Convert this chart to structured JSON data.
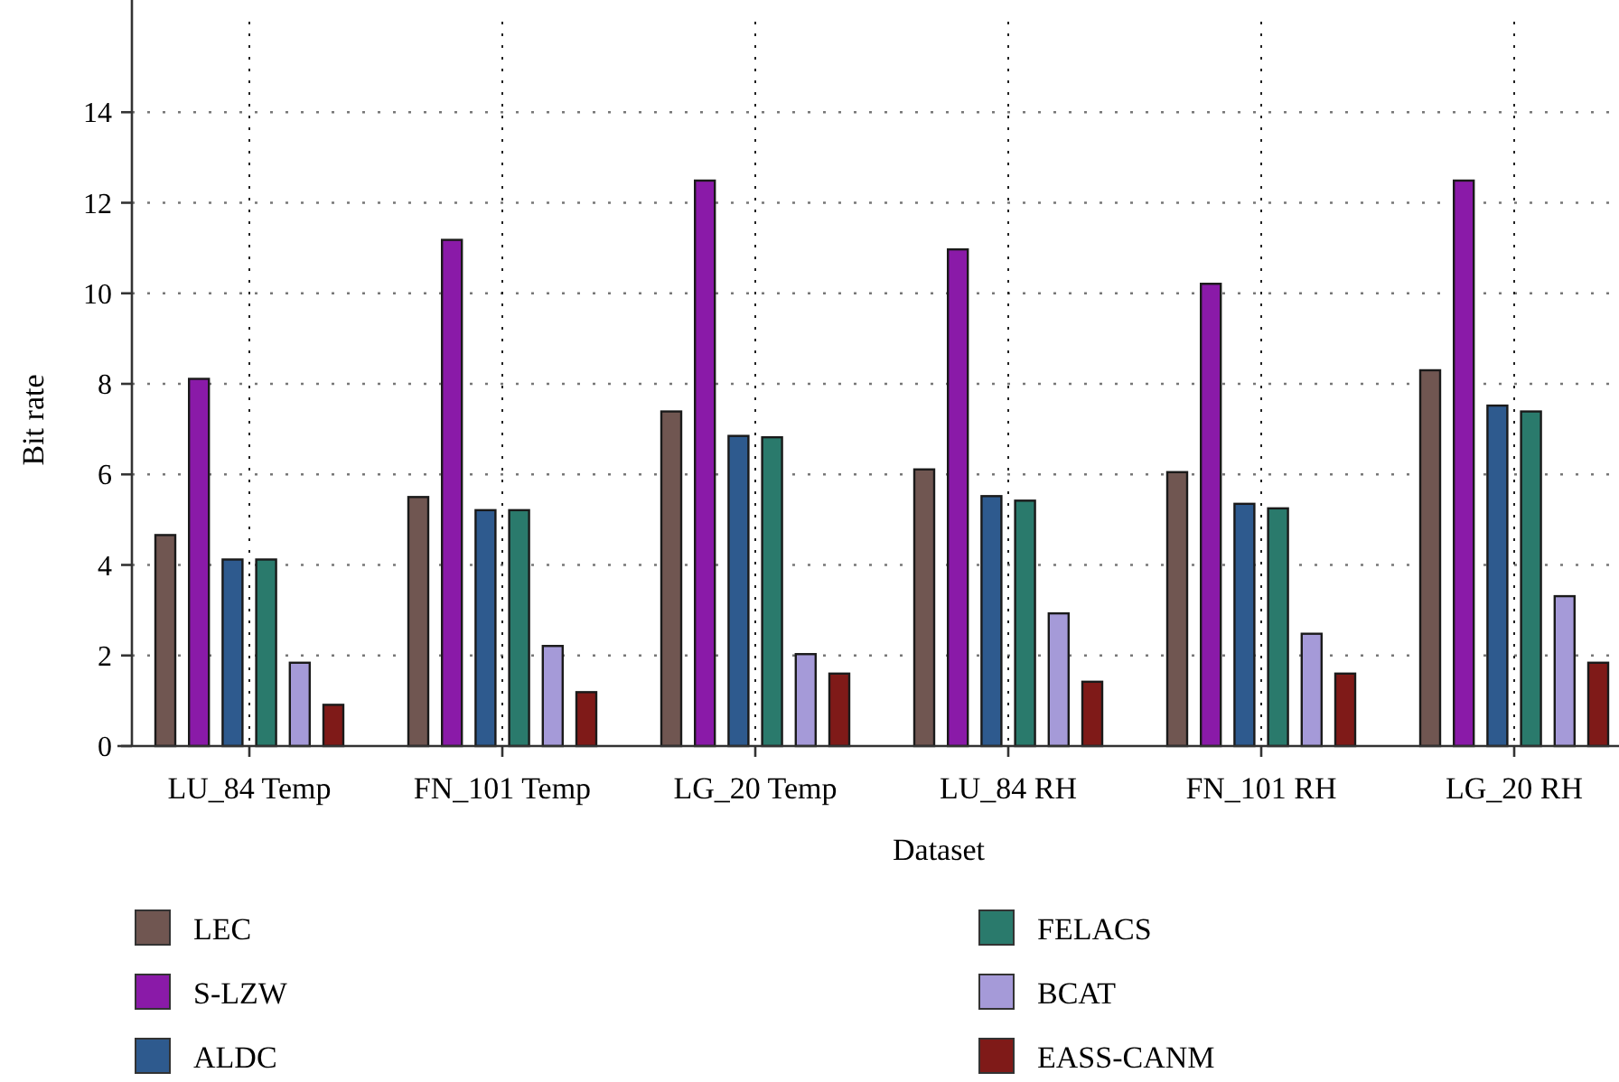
{
  "chart_data": {
    "type": "bar",
    "xlabel": "Dataset",
    "ylabel": "Bit rate",
    "categories": [
      "LU_84 Temp",
      "FN_101 Temp",
      "LG_20 Temp",
      "LU_84 RH",
      "FN_101 RH",
      "LG_20 RH"
    ],
    "series": [
      {
        "name": "LEC",
        "color": "#705651",
        "values": [
          4.66,
          5.5,
          7.39,
          6.11,
          6.05,
          8.3
        ]
      },
      {
        "name": "S-LZW",
        "color": "#8a1aa8",
        "values": [
          8.11,
          11.18,
          12.49,
          10.97,
          10.21,
          12.49
        ]
      },
      {
        "name": "ALDC",
        "color": "#2e5a8e",
        "values": [
          4.12,
          5.21,
          6.85,
          5.52,
          5.35,
          7.52
        ]
      },
      {
        "name": "FELACS",
        "color": "#2a7a6c",
        "values": [
          4.12,
          5.21,
          6.82,
          5.42,
          5.25,
          7.39
        ]
      },
      {
        "name": "BCAT",
        "color": "#a59ad8",
        "values": [
          1.84,
          2.21,
          2.03,
          2.93,
          2.48,
          3.31
        ]
      },
      {
        "name": "EASS-CANM",
        "color": "#7f1a18",
        "values": [
          0.91,
          1.19,
          1.6,
          1.42,
          1.6,
          1.84
        ]
      }
    ],
    "ylim": [
      0,
      16
    ],
    "yticks": [
      0,
      2,
      4,
      6,
      8,
      10,
      12,
      14
    ],
    "grid": true,
    "legend": "bottom"
  }
}
